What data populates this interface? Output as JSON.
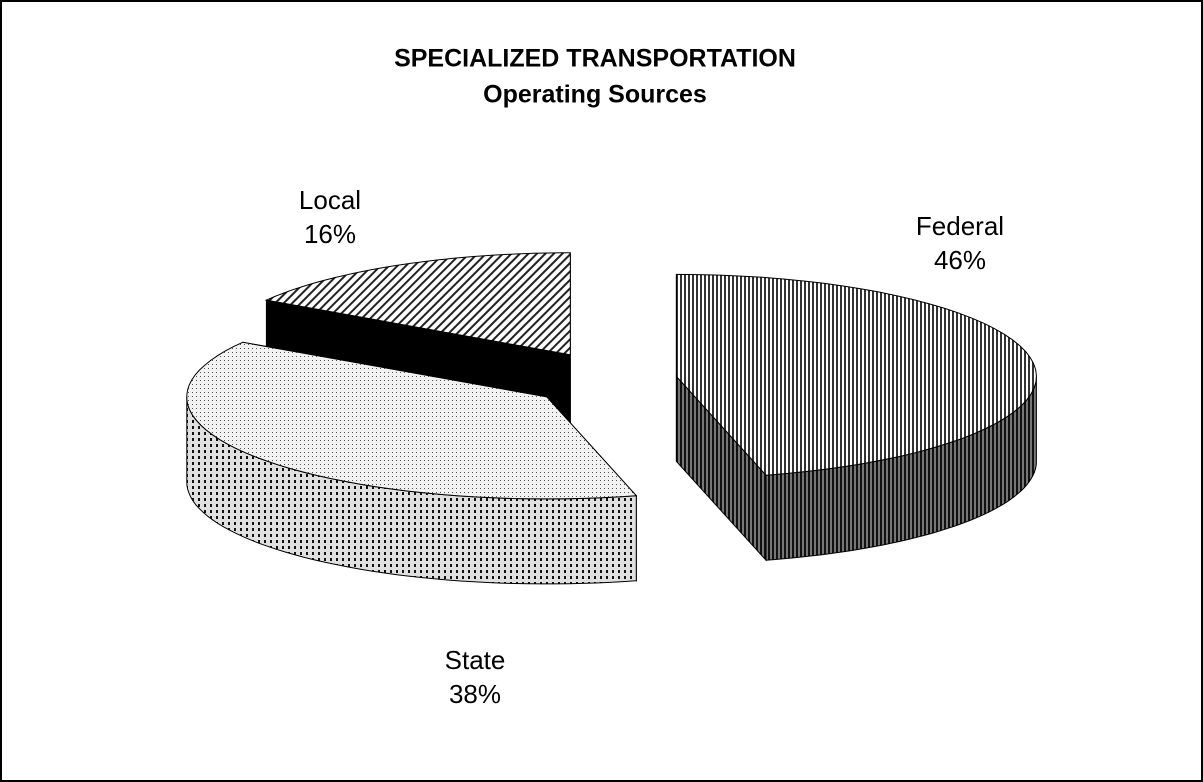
{
  "chart_data": {
    "type": "pie",
    "title": "SPECIALIZED TRANSPORTATION",
    "subtitle": "Operating Sources",
    "categories": [
      "Federal",
      "State",
      "Local"
    ],
    "values": [
      46,
      38,
      16
    ],
    "value_labels": [
      "46%",
      "38%",
      "16%"
    ]
  }
}
